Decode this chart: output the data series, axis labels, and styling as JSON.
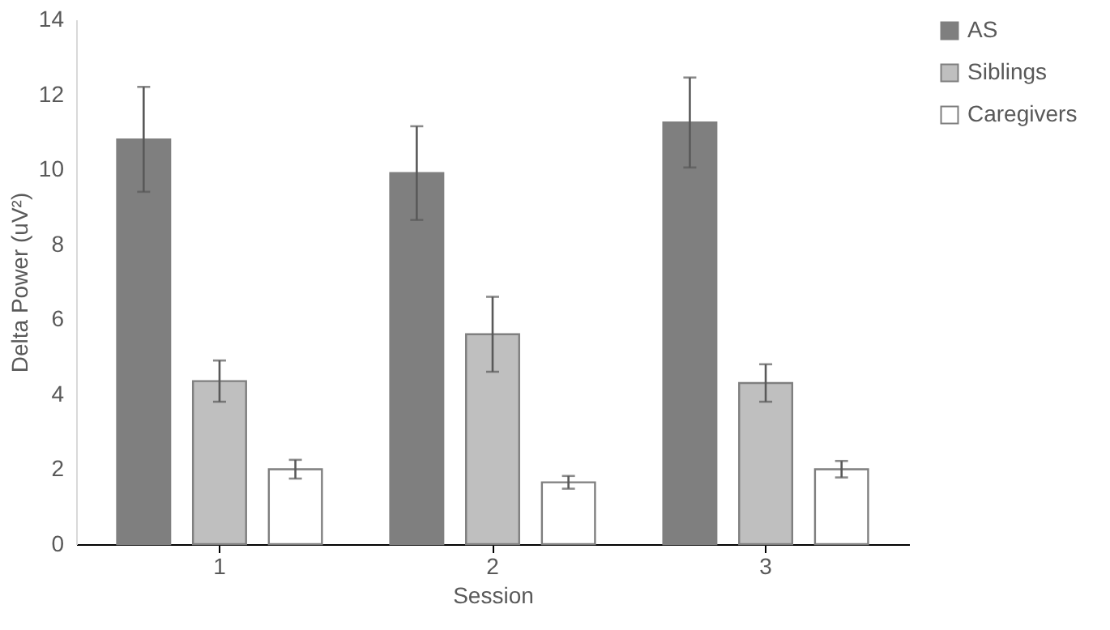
{
  "chart_data": {
    "type": "bar",
    "xlabel": "Session",
    "ylabel": "Delta Power (uV²)",
    "categories": [
      "1",
      "2",
      "3"
    ],
    "series": [
      {
        "name": "AS",
        "color": "#7f7f7f",
        "values": [
          10.8,
          9.9,
          11.25
        ],
        "errors": [
          1.4,
          1.25,
          1.2
        ]
      },
      {
        "name": "Siblings",
        "color": "#bfbfbf",
        "values": [
          4.35,
          5.6,
          4.3
        ],
        "errors": [
          0.55,
          1.0,
          0.5
        ]
      },
      {
        "name": "Caregivers",
        "color": "#ffffff",
        "values": [
          2.0,
          1.65,
          2.0
        ],
        "errors": [
          0.25,
          0.17,
          0.22
        ]
      }
    ],
    "ylim": [
      0,
      14
    ],
    "yticks": [
      0,
      2,
      4,
      6,
      8,
      10,
      12,
      14
    ],
    "grid": false,
    "legend": "right"
  }
}
